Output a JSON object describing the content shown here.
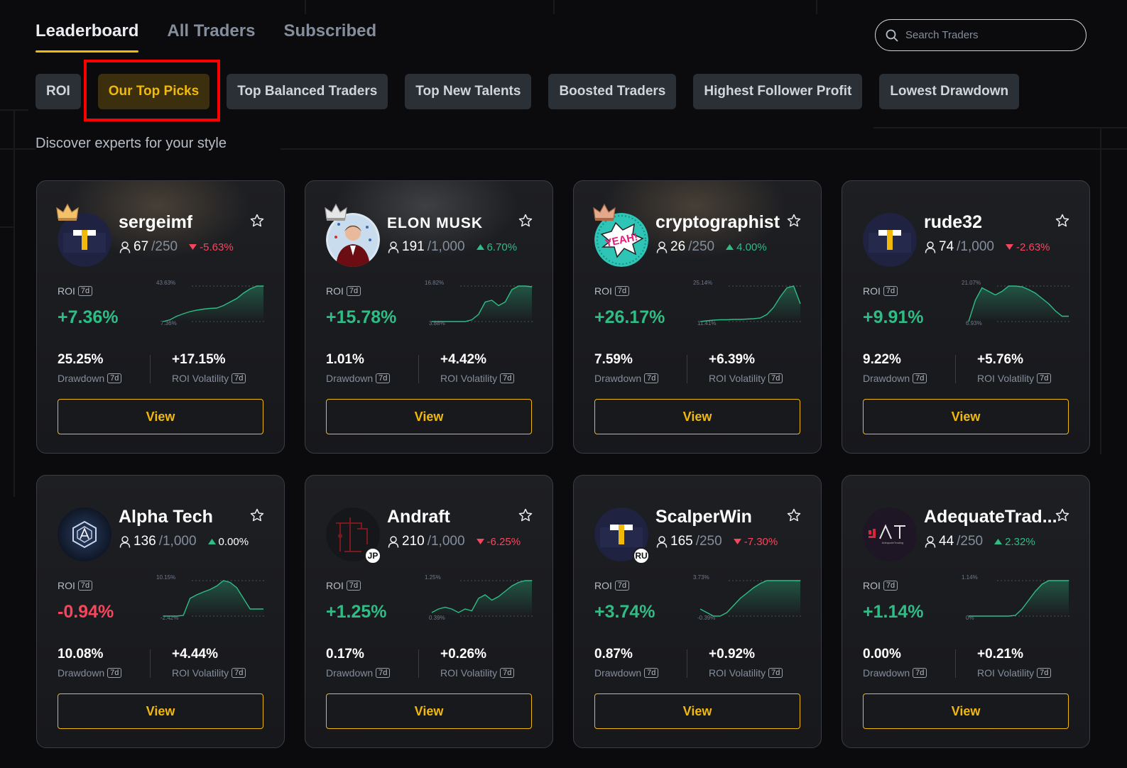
{
  "top_tabs": [
    "Leaderboard",
    "All Traders",
    "Subscribed"
  ],
  "search": {
    "placeholder": "Search Traders"
  },
  "filters": [
    "ROI",
    "Our Top Picks",
    "Top Balanced Traders",
    "Top New Talents",
    "Boosted Traders",
    "Highest Follower Profit",
    "Lowest Drawdown"
  ],
  "active_filter": "Our Top Picks",
  "subtitle": "Discover experts for your style",
  "labels": {
    "roi": "ROI",
    "period": "7d",
    "drawdown": "Drawdown",
    "roi_volatility": "ROI Volatility",
    "view": "View"
  },
  "colors": {
    "accent": "#f0b90b",
    "up": "#2ebd85",
    "down": "#f6465d"
  },
  "traders": [
    {
      "name": "sergeimf",
      "followers": "67",
      "max": "/250",
      "change": "-5.63%",
      "dir": "down",
      "roi": "+7.36%",
      "roi_dir": "up",
      "chart_max": "43.63%",
      "chart_min": "7.36%",
      "drawdown": "25.25%",
      "volatility": "+17.15%",
      "avatar": "binance-t-icon",
      "crown": "gold",
      "country": "",
      "spark": [
        0.0,
        0.05,
        0.15,
        0.22,
        0.28,
        0.32,
        0.35,
        0.37,
        0.38,
        0.45,
        0.55,
        0.65,
        0.8,
        0.92,
        1.0,
        1.0
      ],
      "spark_inverted": true
    },
    {
      "name": "ELON MUSK",
      "followers": "191",
      "max": "/1,000",
      "change": "6.70%",
      "dir": "up",
      "roi": "+15.78%",
      "roi_dir": "up",
      "chart_max": "16.82%",
      "chart_min": "3.88%",
      "drawdown": "1.01%",
      "volatility": "+4.42%",
      "avatar": "elon-photo-icon",
      "crown": "silver",
      "country": "",
      "spark": [
        0.0,
        0.0,
        0.0,
        0.0,
        0.0,
        0.0,
        0.05,
        0.2,
        0.55,
        0.6,
        0.45,
        0.55,
        0.9,
        1.0,
        1.0,
        0.98
      ]
    },
    {
      "name": "cryptographist",
      "followers": "26",
      "max": "/250",
      "change": "4.00%",
      "dir": "up",
      "roi": "+26.17%",
      "roi_dir": "up",
      "chart_max": "25.14%",
      "chart_min": "11.41%",
      "drawdown": "7.59%",
      "volatility": "+6.39%",
      "avatar": "yeah-comic-icon",
      "crown": "bronze",
      "country": "",
      "spark": [
        0.0,
        0.02,
        0.04,
        0.05,
        0.05,
        0.06,
        0.06,
        0.07,
        0.08,
        0.1,
        0.2,
        0.4,
        0.7,
        0.95,
        1.0,
        0.5
      ]
    },
    {
      "name": "rude32",
      "followers": "74",
      "max": "/1,000",
      "change": "-2.63%",
      "dir": "down",
      "roi": "+9.91%",
      "roi_dir": "up",
      "chart_max": "21.07%",
      "chart_min": "6.93%",
      "drawdown": "9.22%",
      "volatility": "+5.76%",
      "avatar": "binance-t-icon",
      "crown": "",
      "country": "",
      "spark": [
        0.0,
        0.6,
        0.95,
        0.85,
        0.75,
        0.85,
        1.0,
        1.0,
        0.98,
        0.9,
        0.8,
        0.65,
        0.5,
        0.3,
        0.15,
        0.15
      ]
    },
    {
      "name": "Alpha Tech",
      "followers": "136",
      "max": "/1,000",
      "change": "0.00%",
      "dir": "zero",
      "roi": "-0.94%",
      "roi_dir": "down",
      "chart_max": "10.15%",
      "chart_min": "-2.42%",
      "drawdown": "10.08%",
      "volatility": "+4.44%",
      "avatar": "alpha-tech-icon",
      "crown": "",
      "country": "",
      "spark": [
        0.0,
        0.0,
        0.0,
        0.02,
        0.5,
        0.6,
        0.68,
        0.75,
        0.85,
        1.0,
        0.95,
        0.8,
        0.5,
        0.2,
        0.2,
        0.2
      ]
    },
    {
      "name": "Andraft",
      "followers": "210",
      "max": "/1,000",
      "change": "-6.25%",
      "dir": "down",
      "roi": "+1.25%",
      "roi_dir": "up",
      "chart_max": "1.25%",
      "chart_min": "0.39%",
      "drawdown": "0.17%",
      "volatility": "+0.26%",
      "avatar": "andraft-icon",
      "crown": "",
      "country": "JP",
      "spark": [
        0.1,
        0.2,
        0.25,
        0.2,
        0.1,
        0.2,
        0.15,
        0.5,
        0.6,
        0.45,
        0.55,
        0.7,
        0.85,
        0.95,
        1.0,
        1.0
      ]
    },
    {
      "name": "ScalperWin",
      "followers": "165",
      "max": "/250",
      "change": "-7.30%",
      "dir": "down",
      "roi": "+3.74%",
      "roi_dir": "up",
      "chart_max": "3.73%",
      "chart_min": "-0.39%",
      "drawdown": "0.87%",
      "volatility": "+0.92%",
      "avatar": "binance-t-icon",
      "crown": "",
      "country": "RU",
      "spark": [
        0.2,
        0.1,
        0.0,
        0.0,
        0.1,
        0.3,
        0.5,
        0.65,
        0.8,
        0.92,
        1.0,
        1.0,
        1.0,
        1.0,
        1.0,
        1.0
      ]
    },
    {
      "name": "AdequateTrad...",
      "followers": "44",
      "max": "/250",
      "change": "2.32%",
      "dir": "up",
      "roi": "+1.14%",
      "roi_dir": "up",
      "chart_max": "1.14%",
      "chart_min": "0%",
      "drawdown": "0.00%",
      "volatility": "+0.21%",
      "avatar": "adequate-trading-icon",
      "crown": "",
      "country": "",
      "spark": [
        0.0,
        0.0,
        0.0,
        0.0,
        0.0,
        0.0,
        0.0,
        0.02,
        0.2,
        0.45,
        0.7,
        0.9,
        1.0,
        1.0,
        1.0,
        1.0
      ]
    }
  ]
}
